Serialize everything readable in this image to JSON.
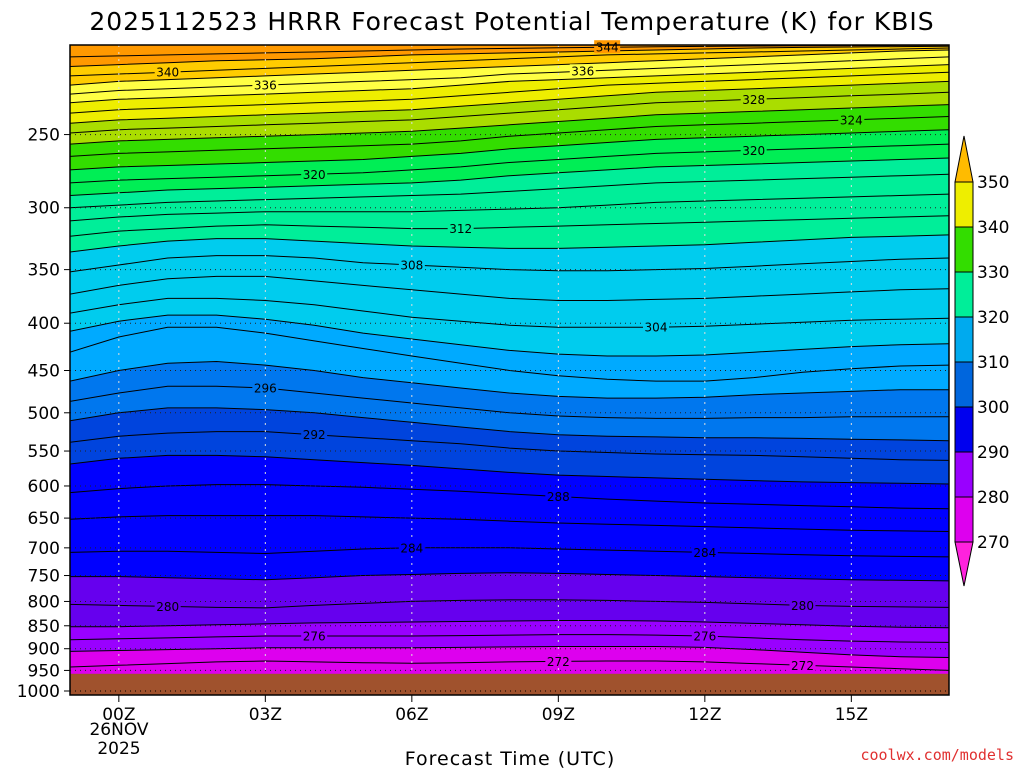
{
  "chart_data": {
    "type": "heatmap",
    "title": "2025112523 HRRR Forecast Potential Temperature (K) for KBIS",
    "xlabel": "Forecast Time (UTC)",
    "ylabel": "",
    "x_ticks": [
      "00Z",
      "03Z",
      "06Z",
      "09Z",
      "12Z",
      "15Z"
    ],
    "x_hours": [
      0,
      3,
      6,
      9,
      12,
      15
    ],
    "x_range": [
      -1,
      17
    ],
    "date_label": [
      "26NOV",
      "2025"
    ],
    "y_ticks": [
      250,
      300,
      350,
      400,
      450,
      500,
      550,
      600,
      650,
      700,
      750,
      800,
      850,
      900,
      950,
      1000
    ],
    "y_range_hpa": [
      200,
      1010
    ],
    "y_scale": "log-pressure",
    "ground_pressure_hpa": 958,
    "ground_color": "#a0522d",
    "grid": "dotted",
    "contour_interval_k": 2,
    "time_hours": [
      -1,
      0,
      1,
      2,
      3,
      4,
      5,
      6,
      7,
      8,
      9,
      10,
      11,
      12,
      13,
      14,
      15,
      16,
      17
    ],
    "isentropes": [
      {
        "theta": 272,
        "p_hpa": [
          942,
          938,
          934,
          930,
          928,
          930,
          932,
          933,
          932,
          930,
          929,
          928,
          928,
          930,
          934,
          938,
          942,
          946,
          950
        ]
      },
      {
        "theta": 274,
        "p_hpa": [
          906,
          904,
          902,
          900,
          898,
          898,
          898,
          898,
          897,
          896,
          895,
          895,
          895,
          897,
          902,
          908,
          914,
          918,
          920
        ]
      },
      {
        "theta": 276,
        "p_hpa": [
          880,
          878,
          876,
          874,
          872,
          872,
          872,
          872,
          871,
          870,
          869,
          869,
          870,
          872,
          876,
          880,
          883,
          885,
          886
        ]
      },
      {
        "theta": 278,
        "p_hpa": [
          852,
          852,
          850,
          848,
          846,
          844,
          843,
          842,
          841,
          840,
          839,
          839,
          840,
          842,
          845,
          848,
          851,
          853,
          854
        ]
      },
      {
        "theta": 280,
        "p_hpa": [
          806,
          808,
          810,
          812,
          813,
          808,
          804,
          800,
          798,
          797,
          797,
          798,
          800,
          802,
          805,
          808,
          810,
          811,
          812
        ]
      },
      {
        "theta": 282,
        "p_hpa": [
          752,
          752,
          754,
          756,
          758,
          754,
          750,
          748,
          746,
          745,
          746,
          748,
          750,
          752,
          754,
          756,
          758,
          759,
          760
        ]
      },
      {
        "theta": 284,
        "p_hpa": [
          708,
          706,
          706,
          708,
          710,
          706,
          702,
          700,
          700,
          700,
          702,
          704,
          706,
          708,
          710,
          712,
          714,
          715,
          716
        ]
      },
      {
        "theta": 286,
        "p_hpa": [
          652,
          648,
          646,
          646,
          646,
          646,
          648,
          650,
          652,
          655,
          658,
          660,
          662,
          664,
          666,
          668,
          670,
          671,
          672
        ]
      },
      {
        "theta": 288,
        "p_hpa": [
          610,
          604,
          600,
          598,
          598,
          600,
          602,
          605,
          608,
          612,
          616,
          620,
          623,
          626,
          628,
          630,
          632,
          634,
          635
        ]
      },
      {
        "theta": 290,
        "p_hpa": [
          568,
          560,
          556,
          556,
          558,
          562,
          566,
          570,
          575,
          580,
          584,
          586,
          588,
          590,
          592,
          594,
          595,
          596,
          597
        ]
      },
      {
        "theta": 292,
        "p_hpa": [
          538,
          530,
          526,
          524,
          524,
          528,
          532,
          536,
          540,
          546,
          550,
          552,
          554,
          555,
          556,
          558,
          560,
          562,
          563
        ]
      },
      {
        "theta": 294,
        "p_hpa": [
          510,
          500,
          494,
          494,
          496,
          500,
          506,
          512,
          518,
          524,
          528,
          530,
          531,
          532,
          532,
          533,
          534,
          535,
          536
        ]
      },
      {
        "theta": 296,
        "p_hpa": [
          486,
          476,
          468,
          468,
          470,
          476,
          482,
          488,
          494,
          500,
          504,
          506,
          507,
          507,
          506,
          506,
          505,
          505,
          505
        ]
      },
      {
        "theta": 298,
        "p_hpa": [
          462,
          450,
          442,
          440,
          444,
          450,
          458,
          464,
          470,
          476,
          480,
          482,
          482,
          481,
          478,
          476,
          474,
          472,
          472
        ]
      },
      {
        "theta": 300,
        "p_hpa": [
          430,
          414,
          404,
          404,
          410,
          418,
          426,
          434,
          442,
          450,
          456,
          460,
          462,
          462,
          458,
          452,
          448,
          445,
          444
        ]
      },
      {
        "theta": 302,
        "p_hpa": [
          408,
          398,
          392,
          392,
          396,
          402,
          410,
          416,
          422,
          428,
          432,
          434,
          434,
          433,
          430,
          427,
          424,
          422,
          421
        ]
      },
      {
        "theta": 304,
        "p_hpa": [
          390,
          382,
          376,
          376,
          378,
          382,
          388,
          394,
          398,
          402,
          404,
          404,
          404,
          403,
          401,
          399,
          397,
          396,
          395
        ]
      },
      {
        "theta": 306,
        "p_hpa": [
          372,
          364,
          358,
          356,
          356,
          360,
          364,
          368,
          372,
          376,
          378,
          378,
          377,
          376,
          374,
          372,
          370,
          368,
          367
        ]
      },
      {
        "theta": 308,
        "p_hpa": [
          352,
          346,
          340,
          338,
          338,
          340,
          344,
          346,
          348,
          350,
          351,
          351,
          350,
          349,
          347,
          345,
          343,
          341,
          340
        ]
      },
      {
        "theta": 310,
        "p_hpa": [
          335,
          330,
          326,
          324,
          324,
          326,
          328,
          330,
          331,
          332,
          332,
          331,
          330,
          329,
          327,
          325,
          323,
          322,
          321
        ]
      },
      {
        "theta": 312,
        "p_hpa": [
          322,
          318,
          316,
          314,
          313,
          314,
          315,
          316,
          316,
          315,
          314,
          313,
          312,
          311,
          310,
          309,
          308,
          307,
          306
        ]
      },
      {
        "theta": 314,
        "p_hpa": [
          310,
          307,
          305,
          304,
          303,
          303,
          303,
          303,
          302,
          301,
          300,
          298,
          296,
          295,
          294,
          293,
          292,
          291,
          290
        ]
      },
      {
        "theta": 316,
        "p_hpa": [
          300,
          298,
          296,
          295,
          294,
          293,
          292,
          291,
          290,
          288,
          286,
          284,
          282,
          281,
          280,
          279,
          278,
          277,
          276
        ]
      },
      {
        "theta": 318,
        "p_hpa": [
          291,
          289,
          287,
          286,
          285,
          284,
          283,
          282,
          280,
          277,
          275,
          273,
          271,
          270,
          269,
          268,
          267,
          266,
          265
        ]
      },
      {
        "theta": 320,
        "p_hpa": [
          282,
          280,
          279,
          278,
          277,
          276,
          275,
          273,
          271,
          268,
          266,
          264,
          262,
          261,
          260,
          259,
          258,
          257,
          256
        ]
      },
      {
        "theta": 322,
        "p_hpa": [
          273,
          271,
          270,
          269,
          268,
          267,
          266,
          264,
          262,
          259,
          257,
          255,
          253,
          252,
          251,
          250,
          249,
          248,
          247
        ]
      },
      {
        "theta": 324,
        "p_hpa": [
          264,
          262,
          261,
          260,
          259,
          258,
          257,
          256,
          254,
          251,
          249,
          247,
          245,
          244,
          243,
          242,
          241,
          240,
          239
        ]
      },
      {
        "theta": 326,
        "p_hpa": [
          256,
          254,
          253,
          252,
          251,
          250,
          249,
          248,
          246,
          244,
          242,
          240,
          238,
          237,
          236,
          235,
          234,
          233,
          232
        ]
      },
      {
        "theta": 328,
        "p_hpa": [
          249,
          247,
          246,
          245,
          244,
          243,
          242,
          241,
          239,
          237,
          235,
          233,
          231,
          230,
          229,
          228,
          227,
          226,
          225
        ]
      },
      {
        "theta": 330,
        "p_hpa": [
          243,
          241,
          240,
          239,
          238,
          237,
          236,
          235,
          233,
          231,
          229,
          227,
          225,
          224,
          223,
          222,
          221,
          220,
          219
        ]
      },
      {
        "theta": 332,
        "p_hpa": [
          237,
          235,
          234,
          233,
          232,
          231,
          230,
          229,
          227,
          225,
          223,
          221,
          220,
          219,
          218,
          217,
          216,
          215,
          214
        ]
      },
      {
        "theta": 334,
        "p_hpa": [
          231,
          229,
          228,
          227,
          226,
          225,
          224,
          223,
          221,
          219,
          218,
          217,
          216,
          215,
          214,
          213,
          212,
          211,
          210
        ]
      },
      {
        "theta": 336,
        "p_hpa": [
          226,
          224,
          223,
          222,
          221,
          220,
          219,
          218,
          217,
          215,
          214,
          213,
          212,
          211,
          210,
          209,
          208,
          207,
          206
        ]
      },
      {
        "theta": 338,
        "p_hpa": [
          221,
          219,
          218,
          217,
          216,
          215,
          214,
          213,
          212,
          211,
          210,
          209,
          208,
          207,
          206,
          205,
          204,
          203,
          202.5
        ]
      },
      {
        "theta": 340,
        "p_hpa": [
          216,
          215,
          214,
          213,
          212,
          211,
          210,
          209,
          208,
          207,
          206,
          205,
          204.5,
          204,
          203.5,
          203,
          202.5,
          202,
          201.5
        ]
      },
      {
        "theta": 342,
        "p_hpa": [
          211,
          210,
          209,
          208,
          207.5,
          207,
          206,
          205,
          204.5,
          204,
          203.5,
          203,
          202.5,
          202,
          201.5,
          201.2,
          201,
          200.8,
          200.6
        ]
      },
      {
        "theta": 344,
        "p_hpa": [
          206,
          205.5,
          205,
          204.5,
          204,
          203.5,
          203,
          202.5,
          202,
          201.7,
          201.4,
          201.1,
          200.9,
          200.7,
          200.5,
          200.4,
          200.3,
          200.2,
          200.1
        ]
      }
    ],
    "contour_labels": [
      {
        "text": "344",
        "theta": 344,
        "hour": 10
      },
      {
        "text": "340",
        "theta": 340,
        "hour": 1
      },
      {
        "text": "336",
        "theta": 336,
        "hour": 3
      },
      {
        "text": "336",
        "theta": 336,
        "hour": 9.5
      },
      {
        "text": "328",
        "theta": 328,
        "hour": 13
      },
      {
        "text": "324",
        "theta": 324,
        "hour": 15
      },
      {
        "text": "320",
        "theta": 320,
        "hour": 13
      },
      {
        "text": "320",
        "theta": 320,
        "hour": 4
      },
      {
        "text": "312",
        "theta": 312,
        "hour": 7
      },
      {
        "text": "308",
        "theta": 308,
        "hour": 6
      },
      {
        "text": "304",
        "theta": 304,
        "hour": 11
      },
      {
        "text": "296",
        "theta": 296,
        "hour": 3
      },
      {
        "text": "292",
        "theta": 292,
        "hour": 4
      },
      {
        "text": "288",
        "theta": 288,
        "hour": 9
      },
      {
        "text": "284",
        "theta": 284,
        "hour": 6
      },
      {
        "text": "284",
        "theta": 284,
        "hour": 12
      },
      {
        "text": "280",
        "theta": 280,
        "hour": 1
      },
      {
        "text": "280",
        "theta": 280,
        "hour": 14
      },
      {
        "text": "276",
        "theta": 276,
        "hour": 4
      },
      {
        "text": "276",
        "theta": 276,
        "hour": 12
      },
      {
        "text": "272",
        "theta": 272,
        "hour": 9
      },
      {
        "text": "272",
        "theta": 272,
        "hour": 14
      }
    ],
    "colorbar": {
      "levels": [
        270,
        280,
        290,
        300,
        310,
        320,
        330,
        340,
        350
      ],
      "labels": [
        "270",
        "280",
        "290",
        "300",
        "310",
        "320",
        "330",
        "340",
        "350"
      ],
      "colors": [
        "#ff00ff",
        "#dd00ee",
        "#9900ff",
        "#6600ee",
        "#0000ff",
        "#0044dd",
        "#0077ee",
        "#00aaff",
        "#00ccee",
        "#00ee99",
        "#00ee55",
        "#33dd00",
        "#aadd00",
        "#eeee00",
        "#ffff44",
        "#ffcc00",
        "#ff9900"
      ],
      "fill_steps_k": [
        266,
        270,
        274,
        278,
        282,
        290,
        294,
        298,
        302,
        310,
        318,
        322,
        326,
        330,
        334,
        338,
        342,
        346,
        350
      ]
    }
  },
  "credit": "coolwx.com/models"
}
